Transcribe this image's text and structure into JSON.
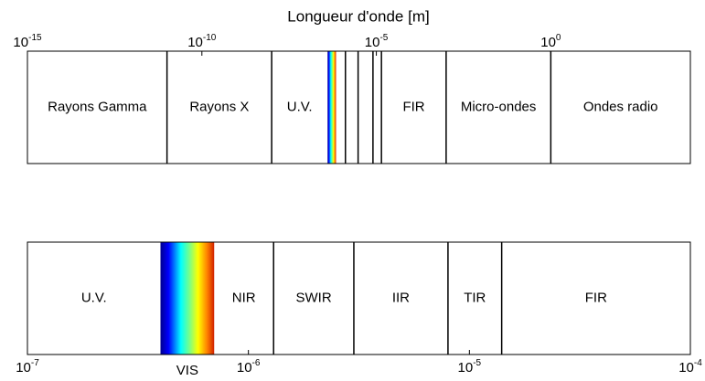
{
  "title": "Longueur d'onde [m]",
  "panels": [
    {
      "xlim": [
        1e-15,
        10000.0
      ],
      "xticks": [
        {
          "value": 1e-15,
          "label": "10",
          "exponent": "-15"
        },
        {
          "value": 1e-10,
          "label": "10",
          "exponent": "-10"
        },
        {
          "value": 1e-05,
          "label": "10",
          "exponent": "-5"
        },
        {
          "value": 1,
          "label": "10",
          "exponent": "0"
        }
      ],
      "tick_side": "top",
      "edges": [
        1e-15,
        1e-11,
        1e-08,
        4e-07,
        7e-07,
        1.3e-06,
        3e-06,
        8e-06,
        1.4e-05,
        0.001,
        1,
        10000.0
      ],
      "labels": [
        "Rayons Gamma",
        "Rayons X",
        "U.V.",
        null,
        null,
        null,
        null,
        null,
        "FIR",
        "Micro-ondes",
        "Ondes radio"
      ],
      "gradient_band": 3
    },
    {
      "xlim": [
        1e-07,
        0.0001
      ],
      "xticks": [
        {
          "value": 1e-07,
          "label": "10",
          "exponent": "-7"
        },
        {
          "value": 1e-06,
          "label": "10",
          "exponent": "-6"
        },
        {
          "value": 1e-05,
          "label": "10",
          "exponent": "-5"
        },
        {
          "value": 0.0001,
          "label": "10",
          "exponent": "-4"
        }
      ],
      "tick_side": "bottom",
      "edges": [
        1e-07,
        4e-07,
        7e-07,
        1.3e-06,
        3e-06,
        8e-06,
        1.4e-05,
        0.0001
      ],
      "labels": [
        "U.V.",
        "VIS",
        "NIR",
        "SWIR",
        "IIR",
        "TIR",
        "FIR"
      ],
      "gradient_band": 1
    }
  ]
}
